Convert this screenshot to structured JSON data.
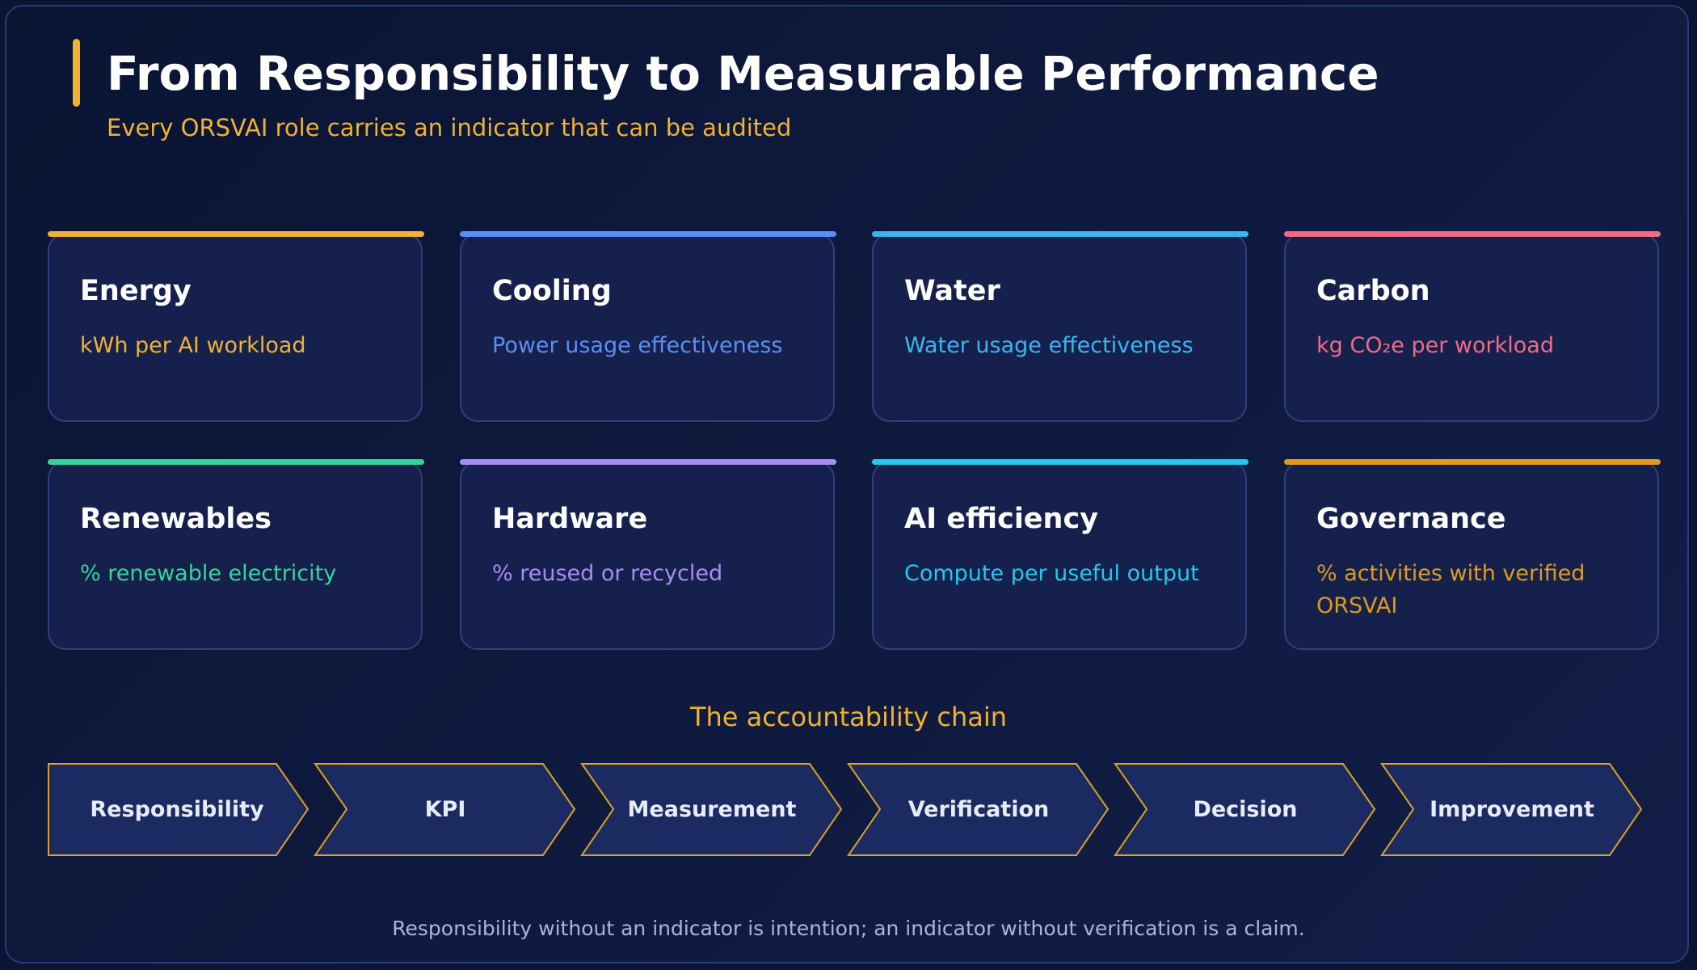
{
  "header": {
    "title": "From Responsibility to Measurable Performance",
    "subtitle": "Every ORSVAI role carries an indicator that can be audited"
  },
  "kpis": [
    {
      "title": "Energy",
      "description": "kWh per AI workload",
      "color": "#f0b232"
    },
    {
      "title": "Cooling",
      "description": "Power usage effectiveness",
      "color": "#5b8ef5"
    },
    {
      "title": "Water",
      "description": "Water usage effectiveness",
      "color": "#38b6f0"
    },
    {
      "title": "Carbon",
      "description": "kg CO₂e per workload",
      "color": "#f06b85"
    },
    {
      "title": "Renewables",
      "description": "% renewable electricity",
      "color": "#35d49a"
    },
    {
      "title": "Hardware",
      "description": "% reused or recycled",
      "color": "#a98bf5"
    },
    {
      "title": "AI efficiency",
      "description": "Compute per useful output",
      "color": "#22c8ef"
    },
    {
      "title": "Governance",
      "description": "% activities with verified ORSVAI",
      "color": "#e09a1a"
    }
  ],
  "chain": {
    "heading": "The accountability chain",
    "steps": [
      "Responsibility",
      "KPI",
      "Measurement",
      "Verification",
      "Decision",
      "Improvement"
    ]
  },
  "footer": "Responsibility without an indicator is intention; an indicator without verification is a claim."
}
